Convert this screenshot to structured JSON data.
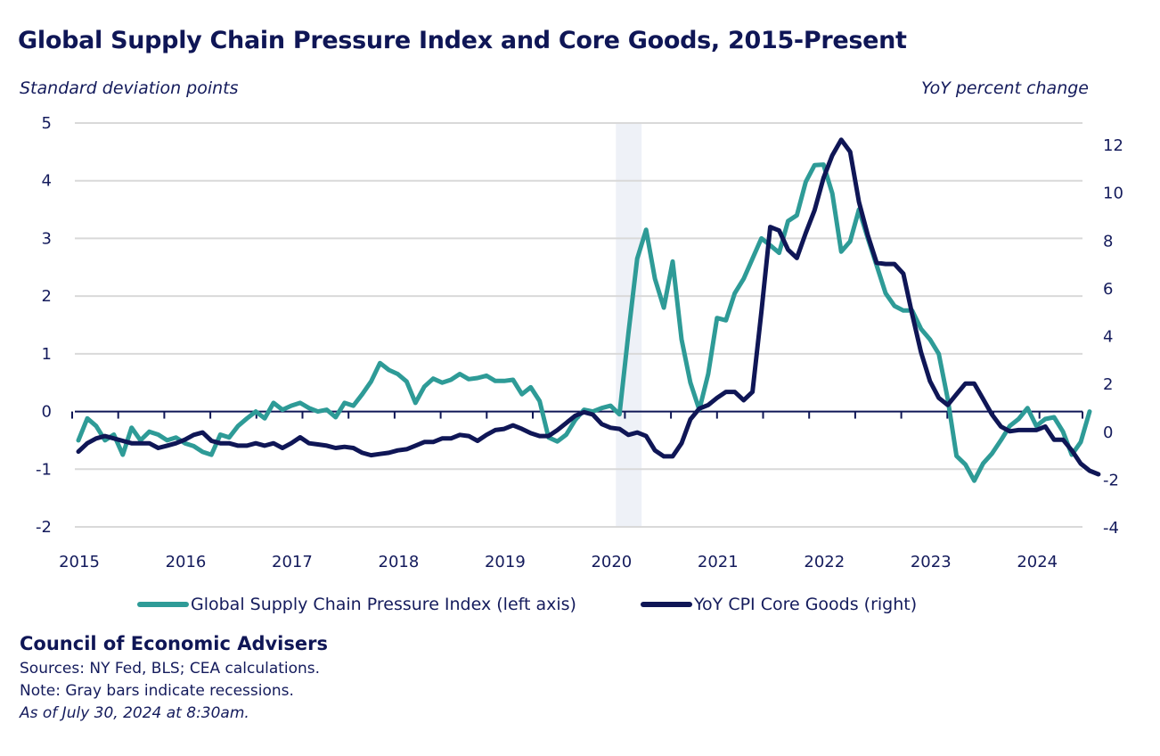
{
  "header": {
    "title": "Global Supply Chain Pressure Index and Core Goods, 2015-Present",
    "left_axis_unit": "Standard deviation points",
    "right_axis_unit": "YoY percent change"
  },
  "colors": {
    "gscpi": "#2e9b97",
    "cpi": "#0f1656",
    "grid": "#d9d9d9",
    "recession": "#eef1f7",
    "text": "#141b5c"
  },
  "legend": {
    "gscpi_label": "Global Supply Chain Pressure Index (left axis)",
    "cpi_label": "YoY CPI Core Goods (right)"
  },
  "footer": {
    "org": "Council of Economic Advisers",
    "sources": "Sources: NY Fed, BLS; CEA calculations.",
    "note": "Note: Gray bars indicate recessions.",
    "as_of": "As of July 30, 2024 at 8:30am."
  },
  "chart_data": {
    "type": "line",
    "title": "Global Supply Chain Pressure Index and Core Goods, 2015-Present",
    "xlabel": "",
    "ylabel": "Standard deviation points",
    "y2label": "YoY percent change",
    "x_start": "2015-01",
    "frequency": "monthly",
    "x_tick_labels": [
      "2015",
      "2016",
      "2017",
      "2018",
      "2019",
      "2020",
      "2021",
      "2022",
      "2023",
      "2024"
    ],
    "ylim": [
      -2,
      5
    ],
    "y_ticks": [
      -2,
      -1,
      0,
      1,
      2,
      3,
      4,
      5
    ],
    "y2lim": [
      -4,
      12.9
    ],
    "y2_ticks": [
      -4,
      -2,
      0,
      2,
      4,
      6,
      8,
      10,
      12
    ],
    "grid": true,
    "legend_position": "bottom",
    "recessions": [
      {
        "start": "2020-02",
        "end": "2020-04"
      }
    ],
    "series": [
      {
        "name": "Global Supply Chain Pressure Index (left axis)",
        "axis": "left",
        "values": [
          -0.5,
          -0.12,
          -0.25,
          -0.5,
          -0.4,
          -0.75,
          -0.28,
          -0.5,
          -0.35,
          -0.4,
          -0.5,
          -0.45,
          -0.55,
          -0.6,
          -0.7,
          -0.75,
          -0.4,
          -0.45,
          -0.25,
          -0.12,
          0.0,
          -0.12,
          0.15,
          0.03,
          0.1,
          0.15,
          0.06,
          0.0,
          0.03,
          -0.1,
          0.15,
          0.1,
          0.3,
          0.52,
          0.84,
          0.72,
          0.65,
          0.52,
          0.15,
          0.43,
          0.57,
          0.5,
          0.55,
          0.65,
          0.56,
          0.58,
          0.62,
          0.53,
          0.53,
          0.55,
          0.3,
          0.42,
          0.18,
          -0.45,
          -0.52,
          -0.4,
          -0.15,
          0.03,
          0.0,
          0.06,
          0.1,
          -0.05,
          1.35,
          2.65,
          3.15,
          2.3,
          1.8,
          2.6,
          1.25,
          0.5,
          0.03,
          0.65,
          1.62,
          1.58,
          2.05,
          2.3,
          2.65,
          3.0,
          2.88,
          2.75,
          3.3,
          3.4,
          3.98,
          4.27,
          4.28,
          3.78,
          2.77,
          2.95,
          3.5,
          3.0,
          2.53,
          2.05,
          1.83,
          1.75,
          1.75,
          1.43,
          1.25,
          1.0,
          0.22,
          -0.77,
          -0.92,
          -1.2,
          -0.9,
          -0.73,
          -0.5,
          -0.25,
          -0.13,
          0.06,
          -0.25,
          -0.13,
          -0.1,
          -0.35,
          -0.75,
          -0.53,
          0.0
        ]
      },
      {
        "name": "YoY CPI Core Goods (right)",
        "axis": "right",
        "values": [
          -0.85,
          -0.5,
          -0.3,
          -0.2,
          -0.3,
          -0.4,
          -0.5,
          -0.5,
          -0.5,
          -0.7,
          -0.6,
          -0.5,
          -0.35,
          -0.15,
          -0.05,
          -0.4,
          -0.5,
          -0.5,
          -0.6,
          -0.6,
          -0.5,
          -0.6,
          -0.5,
          -0.7,
          -0.5,
          -0.25,
          -0.5,
          -0.55,
          -0.6,
          -0.7,
          -0.65,
          -0.7,
          -0.9,
          -1.0,
          -0.95,
          -0.9,
          -0.8,
          -0.75,
          -0.6,
          -0.45,
          -0.45,
          -0.3,
          -0.3,
          -0.15,
          -0.2,
          -0.4,
          -0.15,
          0.05,
          0.1,
          0.25,
          0.1,
          -0.08,
          -0.2,
          -0.2,
          0.05,
          0.35,
          0.65,
          0.8,
          0.7,
          0.3,
          0.15,
          0.1,
          -0.15,
          -0.05,
          -0.2,
          -0.8,
          -1.05,
          -1.05,
          -0.5,
          0.5,
          0.95,
          1.1,
          1.4,
          1.65,
          1.65,
          1.3,
          1.65,
          5.0,
          8.55,
          8.4,
          7.6,
          7.25,
          8.3,
          9.25,
          10.6,
          11.55,
          12.2,
          11.7,
          9.6,
          8.2,
          7.05,
          7.0,
          7.0,
          6.6,
          4.9,
          3.3,
          2.1,
          1.4,
          1.1,
          1.55,
          2.0,
          2.0,
          1.35,
          0.7,
          0.2,
          0.0,
          0.05,
          0.05,
          0.05,
          0.2,
          -0.35,
          -0.35,
          -0.8,
          -1.35,
          -1.65,
          -1.8
        ]
      }
    ]
  }
}
